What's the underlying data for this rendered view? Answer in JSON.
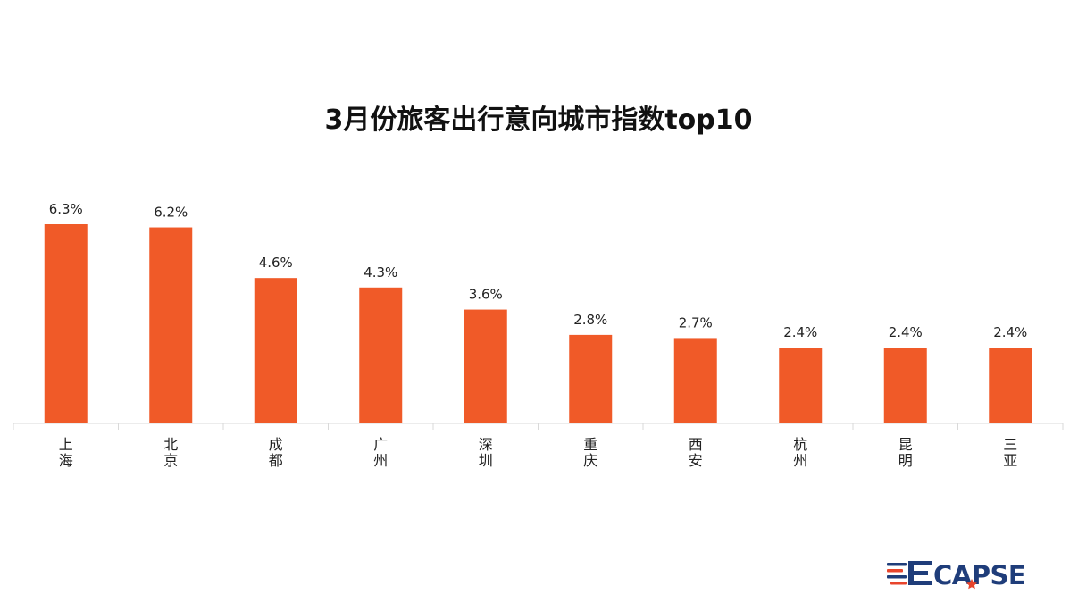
{
  "logo": {
    "text": "CAPSE",
    "brand_color": "#1f3d7a",
    "accent_color": "#e8452c"
  },
  "chart_data": {
    "type": "bar",
    "title": "3月份旅客出行意向城市指数top10",
    "xlabel": "",
    "ylabel": "",
    "categories": [
      "上海",
      "北京",
      "成都",
      "广州",
      "深圳",
      "重庆",
      "西安",
      "杭州",
      "昆明",
      "三亚"
    ],
    "values": [
      6.3,
      6.2,
      4.6,
      4.3,
      3.6,
      2.8,
      2.7,
      2.4,
      2.4,
      2.4
    ],
    "value_labels": [
      "6.3%",
      "6.2%",
      "4.6%",
      "4.3%",
      "3.6%",
      "2.8%",
      "2.7%",
      "2.4%",
      "2.4%",
      "2.4%"
    ],
    "ylim": [
      0,
      6.3
    ],
    "grid": false,
    "legend": "none",
    "bar_color": "#f05a28",
    "axis_color": "#d9d9d9"
  }
}
